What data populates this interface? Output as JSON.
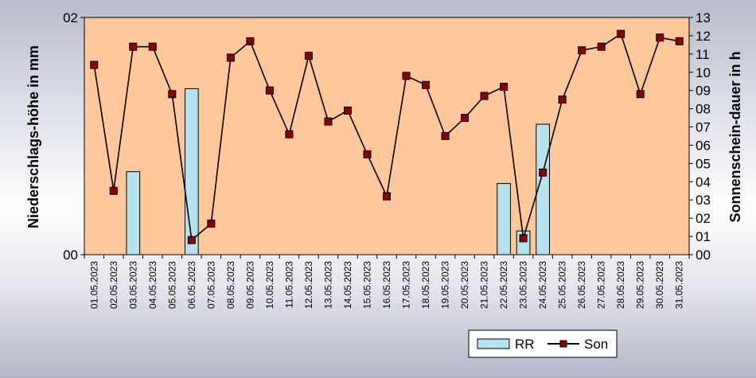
{
  "chart_data": {
    "type": "bar",
    "categories": [
      "01.05.2023",
      "02.05.2023",
      "03.05.2023",
      "04.05.2023",
      "05.05.2023",
      "06.05.2023",
      "07.05.2023",
      "08.05.2023",
      "09.05.2023",
      "10.05.2023",
      "11.05.2023",
      "12.05.2023",
      "13.05.2023",
      "14.05.2023",
      "15.05.2023",
      "16.05.2023",
      "17.05.2023",
      "18.05.2023",
      "19.05.2023",
      "20.05.2023",
      "21.05.2023",
      "22.05.2023",
      "23.05.2023",
      "24.05.2023",
      "25.05.2023",
      "26.05.2023",
      "27.05.2023",
      "28.05.2023",
      "29.05.2023",
      "30.05.2023",
      "31.05.2023"
    ],
    "series": [
      {
        "name": "RR",
        "axis": "left",
        "kind": "bar",
        "values": [
          0,
          0,
          0.7,
          0,
          0,
          1.4,
          0,
          0,
          0,
          0,
          0,
          0,
          0,
          0,
          0,
          0,
          0,
          0,
          0,
          0,
          0,
          0.6,
          0.2,
          1.1,
          0,
          0,
          0,
          0,
          0,
          0,
          0
        ]
      },
      {
        "name": "Son",
        "axis": "right",
        "kind": "line",
        "values": [
          10.4,
          3.5,
          11.4,
          11.4,
          8.8,
          0.8,
          1.7,
          10.8,
          11.7,
          9.0,
          6.6,
          10.9,
          7.3,
          7.9,
          5.5,
          3.2,
          9.8,
          9.3,
          6.5,
          7.5,
          8.7,
          9.2,
          0.9,
          4.5,
          8.5,
          11.2,
          11.4,
          12.1,
          8.8,
          11.9,
          11.7
        ]
      }
    ],
    "ylabel": "Niederschlags-höhe in mm",
    "y2label": "Sonnenschein-dauer in h",
    "ylim": [
      0,
      2
    ],
    "y2lim": [
      0,
      13
    ],
    "y_ticks": [
      "00",
      "02"
    ],
    "y2_ticks": [
      "00",
      "01",
      "02",
      "03",
      "04",
      "05",
      "06",
      "07",
      "08",
      "09",
      "10",
      "11",
      "12",
      "13"
    ],
    "grid": false,
    "legend_position": "bottom-right",
    "colors": {
      "plot_bg": "#fec89a",
      "bar_fill": "#b5e2ec",
      "bar_stroke": "#000000",
      "line": "#000000",
      "marker_fill": "#8b0000",
      "marker_stroke": "#000000"
    }
  }
}
